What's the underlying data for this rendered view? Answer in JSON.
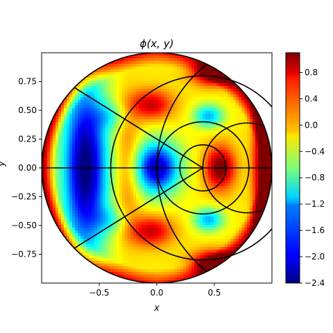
{
  "chart_data": {
    "type": "heatmap",
    "title": "ϕ(x, y)",
    "xlabel": "x",
    "ylabel": "y",
    "xlim": [
      -1.0,
      1.0
    ],
    "ylim": [
      -1.0,
      1.0
    ],
    "grid": false,
    "domain": "unit disk",
    "x_ticks": [
      -0.5,
      0.0,
      0.5
    ],
    "x_tick_labels": [
      "−0.5",
      "0.0",
      "0.5"
    ],
    "y_ticks": [
      0.75,
      0.5,
      0.25,
      0.0,
      -0.25,
      -0.5,
      -0.75
    ],
    "y_tick_labels": [
      "0.75",
      "0.50",
      "0.25",
      "0.00",
      "−0.25",
      "−0.50",
      "−0.75"
    ],
    "colorbar": {
      "colormap": "jet",
      "min": -2.4,
      "max": 1.1,
      "ticks": [
        0.8,
        0.4,
        0.0,
        -0.4,
        -0.8,
        -1.2,
        -1.6,
        -2.0,
        -2.4
      ],
      "tick_labels": [
        "0.8",
        "0.4",
        "0.0",
        "−0.4",
        "−0.8",
        "−1.2",
        "−1.6",
        "−2.0",
        "−2.4"
      ]
    },
    "overlay_curves": {
      "color": "#000000",
      "circles": [
        {
          "cx": 0.0,
          "cy": 0.0,
          "r": 1.0
        },
        {
          "cx": 0.4,
          "cy": 0.0,
          "r": 0.2
        },
        {
          "cx": 0.4,
          "cy": 0.0,
          "r": 0.4
        },
        {
          "cx": 0.4,
          "cy": 0.0,
          "r": 0.8
        }
      ],
      "lines": [
        {
          "x1": -1.0,
          "y1": 0.0,
          "x2": 1.0,
          "y2": 0.0
        },
        {
          "x1": -0.72,
          "y1": 0.7,
          "x2": 0.4,
          "y2": 0.0
        },
        {
          "x1": -0.72,
          "y1": -0.7,
          "x2": 0.4,
          "y2": 0.0
        }
      ],
      "arcs": [
        {
          "cx": 1.15,
          "cy": 0.0,
          "r": 1.15
        },
        {
          "cx": 0.79,
          "cy": 0.0,
          "r": 0.39
        }
      ]
    }
  }
}
